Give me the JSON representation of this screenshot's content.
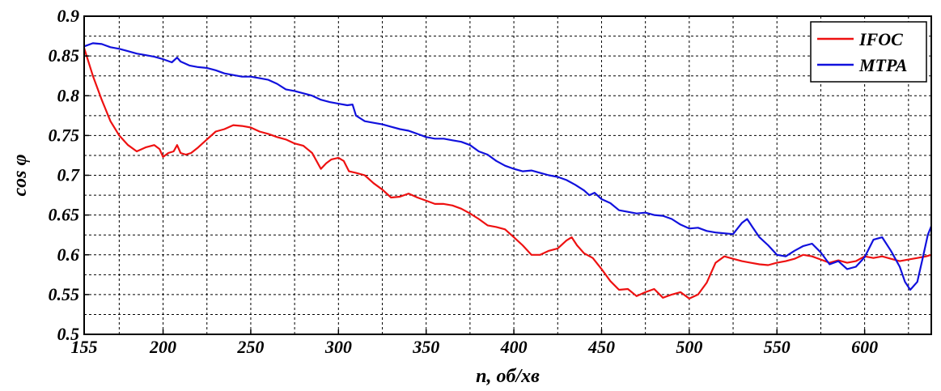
{
  "chart_data": {
    "type": "line",
    "title": "",
    "xlabel": "n, об/хв",
    "ylabel": "cos φ",
    "xlim": [
      155,
      638
    ],
    "ylim": [
      0.5,
      0.9
    ],
    "xticks": [
      155,
      200,
      250,
      300,
      350,
      400,
      450,
      500,
      550,
      600
    ],
    "yticks": [
      0.5,
      0.55,
      0.6,
      0.65,
      0.7,
      0.75,
      0.8,
      0.85,
      0.9
    ],
    "xtick_labels": [
      "155",
      "200",
      "250",
      "300",
      "350",
      "400",
      "450",
      "500",
      "550",
      "600"
    ],
    "ytick_labels": [
      "0.5",
      "0.55",
      "0.6",
      "0.65",
      "0.7",
      "0.75",
      "0.8",
      "0.85",
      "0.9"
    ],
    "grid": true,
    "legend_position": "top-right",
    "series": [
      {
        "name": "IFOC",
        "color": "#ee1111",
        "x": [
          155,
          160,
          165,
          170,
          175,
          180,
          185,
          190,
          195,
          198,
          200,
          203,
          206,
          208,
          210,
          213,
          216,
          220,
          225,
          230,
          235,
          240,
          245,
          250,
          255,
          260,
          265,
          270,
          275,
          280,
          285,
          288,
          290,
          293,
          296,
          300,
          303,
          306,
          310,
          315,
          320,
          325,
          330,
          335,
          340,
          345,
          350,
          355,
          360,
          365,
          370,
          375,
          380,
          385,
          390,
          395,
          400,
          405,
          410,
          415,
          420,
          425,
          430,
          433,
          436,
          440,
          445,
          450,
          455,
          460,
          465,
          470,
          475,
          480,
          485,
          490,
          495,
          500,
          505,
          510,
          515,
          520,
          525,
          530,
          535,
          540,
          545,
          550,
          555,
          560,
          565,
          570,
          575,
          580,
          585,
          590,
          595,
          600,
          605,
          610,
          615,
          620,
          625,
          630,
          635,
          638
        ],
        "values": [
          0.86,
          0.825,
          0.795,
          0.768,
          0.75,
          0.738,
          0.73,
          0.735,
          0.738,
          0.733,
          0.723,
          0.728,
          0.73,
          0.738,
          0.728,
          0.726,
          0.728,
          0.735,
          0.745,
          0.755,
          0.758,
          0.763,
          0.762,
          0.76,
          0.755,
          0.752,
          0.748,
          0.745,
          0.74,
          0.737,
          0.728,
          0.716,
          0.708,
          0.715,
          0.72,
          0.722,
          0.718,
          0.705,
          0.703,
          0.7,
          0.69,
          0.682,
          0.672,
          0.673,
          0.677,
          0.672,
          0.668,
          0.664,
          0.664,
          0.662,
          0.658,
          0.652,
          0.645,
          0.637,
          0.635,
          0.632,
          0.622,
          0.612,
          0.6,
          0.6,
          0.605,
          0.608,
          0.618,
          0.622,
          0.612,
          0.602,
          0.596,
          0.582,
          0.567,
          0.556,
          0.557,
          0.548,
          0.553,
          0.557,
          0.546,
          0.55,
          0.553,
          0.545,
          0.55,
          0.565,
          0.59,
          0.598,
          0.595,
          0.592,
          0.59,
          0.588,
          0.587,
          0.59,
          0.592,
          0.595,
          0.6,
          0.598,
          0.594,
          0.59,
          0.593,
          0.59,
          0.592,
          0.598,
          0.596,
          0.598,
          0.595,
          0.592,
          0.594,
          0.596,
          0.598,
          0.6
        ]
      },
      {
        "name": "MTPA",
        "color": "#1111dd",
        "x": [
          155,
          160,
          165,
          170,
          175,
          180,
          185,
          190,
          195,
          200,
          205,
          208,
          210,
          215,
          220,
          225,
          230,
          235,
          240,
          245,
          250,
          255,
          260,
          265,
          270,
          275,
          280,
          285,
          290,
          295,
          300,
          305,
          308,
          310,
          315,
          320,
          325,
          330,
          335,
          340,
          345,
          350,
          355,
          360,
          365,
          370,
          375,
          380,
          385,
          390,
          395,
          400,
          405,
          410,
          415,
          420,
          425,
          430,
          435,
          440,
          443,
          446,
          450,
          455,
          460,
          465,
          470,
          475,
          480,
          485,
          490,
          495,
          500,
          505,
          510,
          515,
          520,
          525,
          530,
          533,
          536,
          540,
          545,
          550,
          555,
          560,
          565,
          570,
          575,
          580,
          585,
          590,
          595,
          600,
          605,
          610,
          615,
          620,
          623,
          626,
          630,
          633,
          636,
          638
        ],
        "values": [
          0.862,
          0.866,
          0.865,
          0.861,
          0.859,
          0.856,
          0.853,
          0.851,
          0.849,
          0.846,
          0.842,
          0.848,
          0.843,
          0.838,
          0.836,
          0.835,
          0.832,
          0.828,
          0.826,
          0.824,
          0.824,
          0.822,
          0.82,
          0.815,
          0.808,
          0.806,
          0.803,
          0.8,
          0.795,
          0.792,
          0.79,
          0.788,
          0.789,
          0.775,
          0.768,
          0.766,
          0.764,
          0.761,
          0.758,
          0.756,
          0.752,
          0.748,
          0.746,
          0.746,
          0.744,
          0.742,
          0.738,
          0.73,
          0.726,
          0.718,
          0.712,
          0.708,
          0.705,
          0.706,
          0.703,
          0.7,
          0.698,
          0.694,
          0.688,
          0.681,
          0.675,
          0.678,
          0.67,
          0.665,
          0.656,
          0.654,
          0.652,
          0.653,
          0.65,
          0.649,
          0.645,
          0.638,
          0.633,
          0.634,
          0.63,
          0.628,
          0.627,
          0.626,
          0.64,
          0.645,
          0.635,
          0.622,
          0.612,
          0.6,
          0.598,
          0.605,
          0.611,
          0.614,
          0.603,
          0.588,
          0.592,
          0.582,
          0.585,
          0.597,
          0.619,
          0.622,
          0.605,
          0.585,
          0.566,
          0.556,
          0.566,
          0.595,
          0.625,
          0.636
        ]
      }
    ]
  }
}
